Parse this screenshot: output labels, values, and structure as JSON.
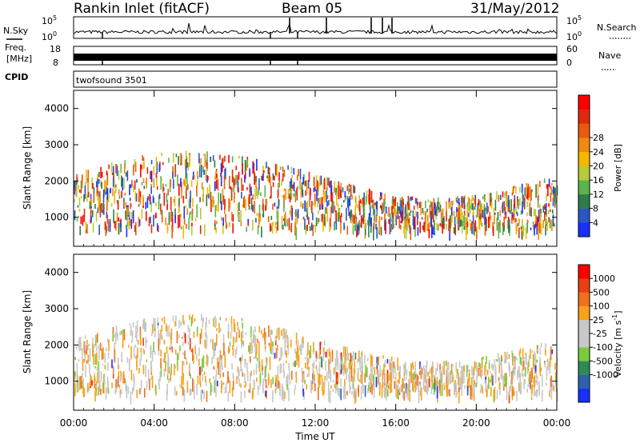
{
  "header": {
    "station": "Rankin Inlet (fitACF)",
    "beam": "Beam 05",
    "date": "31/May/2012"
  },
  "noise_panel": {
    "left_label": "N.Sky",
    "right_label": "N.Search",
    "left_ticks": [
      "10^5",
      "10^0"
    ],
    "right_ticks": [
      "10^5",
      "10^0"
    ]
  },
  "freq_panel": {
    "left_label_1": "Freq.",
    "left_label_2": "[MHz]",
    "right_label": "Nave",
    "left_ticks": [
      "18",
      "8"
    ],
    "right_ticks": [
      "60",
      "0"
    ]
  },
  "cpid_panel": {
    "label": "CPID",
    "program": "twofsound 3501"
  },
  "chart_data": [
    {
      "type": "heatmap",
      "panel": "power",
      "x_ticks": [
        "00:00",
        "04:00",
        "08:00",
        "12:00",
        "16:00",
        "20:00",
        "00:00"
      ],
      "xlim_hours": [
        0,
        24
      ],
      "ylabel": "Slant Range [km]",
      "y_ticks": [
        1000,
        2000,
        3000,
        4000
      ],
      "ylim": [
        200,
        4500
      ],
      "colorbar": {
        "label": "Power [dB]",
        "ticks": [
          "4",
          "8",
          "12",
          "16",
          "20",
          "24",
          "28"
        ],
        "colors": [
          "#1a30ff",
          "#2c55c9",
          "#2e7b4e",
          "#5ab54c",
          "#b6cc3a",
          "#f4b800",
          "#f08a10",
          "#e85a10",
          "#e02a10",
          "#ff0000"
        ]
      }
    },
    {
      "type": "heatmap",
      "panel": "velocity",
      "x_ticks": [
        "00:00",
        "04:00",
        "08:00",
        "12:00",
        "16:00",
        "20:00",
        "00:00"
      ],
      "xlim_hours": [
        0,
        24
      ],
      "xlabel": "Time UT",
      "ylabel": "Slant Range [km]",
      "y_ticks": [
        1000,
        2000,
        3000,
        4000
      ],
      "ylim": [
        200,
        4500
      ],
      "colorbar": {
        "label": "Velocity [m s",
        "label_sup": "-1",
        "label_end": "]",
        "ticks": [
          "1000",
          "500",
          "100",
          "25",
          "-25",
          "-100",
          "-500",
          "-1000"
        ],
        "colors": [
          "#1a30ff",
          "#2c62b0",
          "#2e8b57",
          "#7acb3c",
          "#c8c8c8",
          "#c8c8c8",
          "#f7a21b",
          "#f07020",
          "#e84010",
          "#ff0000"
        ]
      }
    }
  ]
}
